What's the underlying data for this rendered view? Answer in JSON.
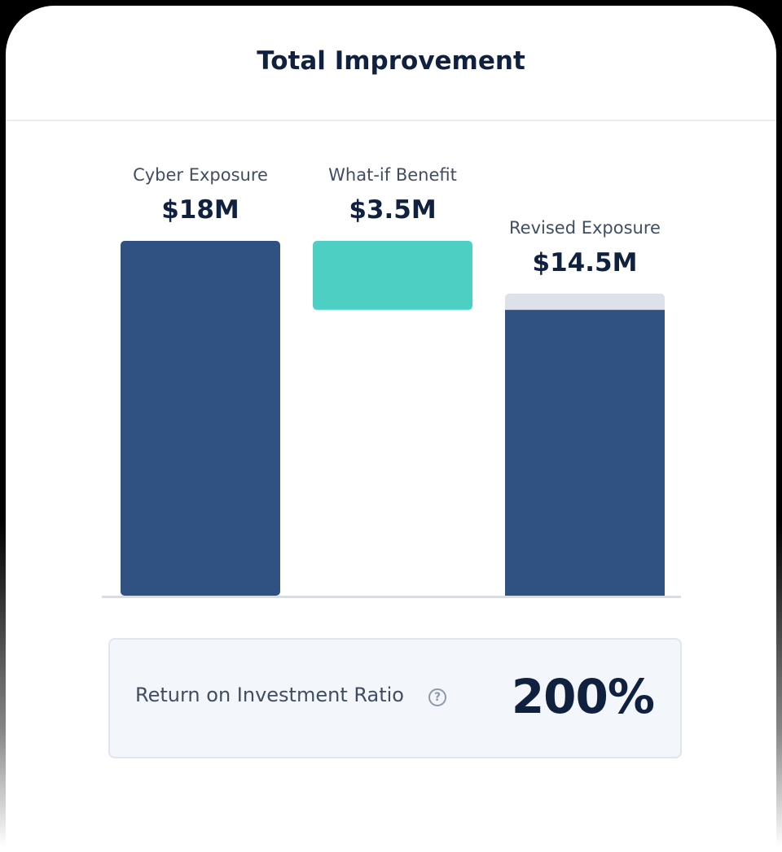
{
  "header": {
    "title": "Total Improvement"
  },
  "chart_data": {
    "type": "bar",
    "categories": [
      "Cyber Exposure",
      "What-if Benefit",
      "Revised Exposure"
    ],
    "values": [
      18,
      3.5,
      14.5
    ],
    "value_labels": [
      "$18M",
      "$3.5M",
      "$14.5M"
    ],
    "unit": "$M",
    "ylim": [
      0,
      18
    ],
    "colors": {
      "exposure": "#2f5283",
      "benefit": "#4ecfc3",
      "reduction": "#dde1ea",
      "axis": "#d9dce1",
      "label": "#3f4e61",
      "value": "#10213f"
    }
  },
  "roi": {
    "label": "Return on Investment Ratio",
    "help_icon": "question-circle-icon",
    "help_glyph": "?",
    "value": "200%"
  }
}
